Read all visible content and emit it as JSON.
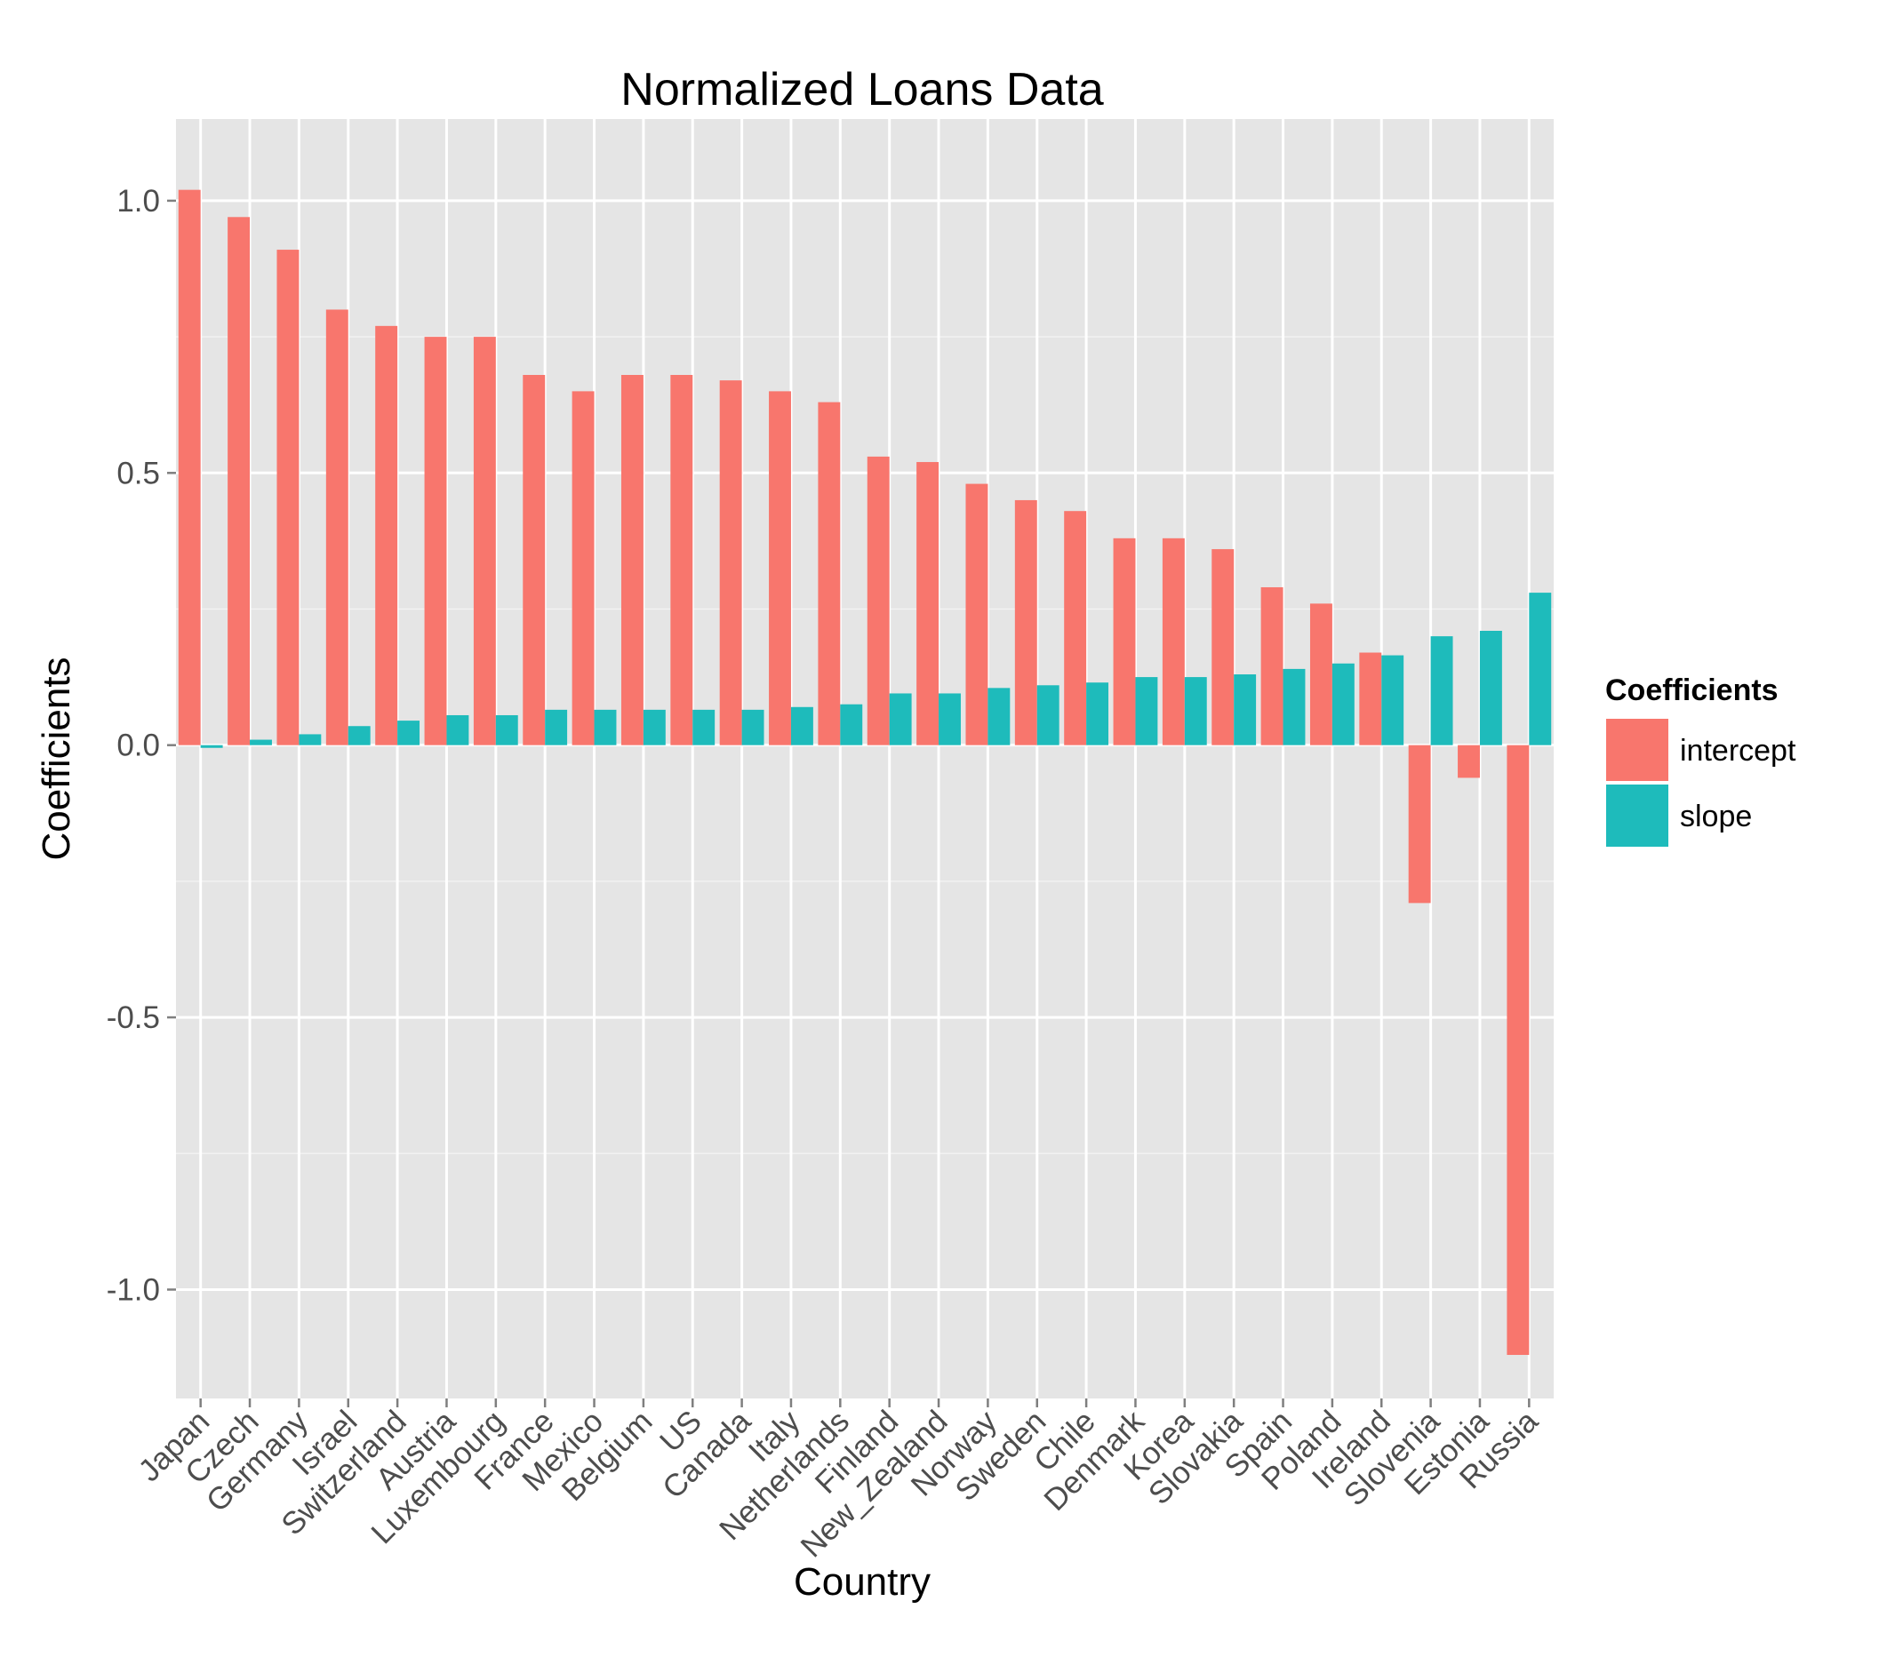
{
  "chart_data": {
    "type": "bar",
    "title": "Normalized Loans Data",
    "xlabel": "Country",
    "ylabel": "Coefficients",
    "ylim": [
      -1.2,
      1.15
    ],
    "yticks": [
      -1.0,
      -0.5,
      0.0,
      0.5,
      1.0
    ],
    "ytick_labels": [
      "-1.0",
      "-0.5",
      "0.0",
      "0.5",
      "1.0"
    ],
    "grid": true,
    "legend_position": "right",
    "legend_title": "Coefficients",
    "categories": [
      "Japan",
      "Czech",
      "Germany",
      "Israel",
      "Switzerland",
      "Austria",
      "Luxembourg",
      "France",
      "Mexico",
      "Belgium",
      "US",
      "Canada",
      "Italy",
      "Netherlands",
      "Finland",
      "New_Zealand",
      "Norway",
      "Sweden",
      "Chile",
      "Denmark",
      "Korea",
      "Slovakia",
      "Spain",
      "Poland",
      "Ireland",
      "Slovenia",
      "Estonia",
      "Russia"
    ],
    "series": [
      {
        "name": "intercept",
        "color": "#f8766d",
        "values": [
          1.02,
          0.97,
          0.91,
          0.8,
          0.77,
          0.75,
          0.75,
          0.68,
          0.65,
          0.68,
          0.68,
          0.67,
          0.65,
          0.63,
          0.53,
          0.52,
          0.48,
          0.45,
          0.43,
          0.38,
          0.38,
          0.36,
          0.29,
          0.26,
          0.17,
          -0.29,
          -0.06,
          -1.12
        ]
      },
      {
        "name": "slope",
        "color": "#1ebbbb",
        "values": [
          -0.005,
          0.01,
          0.02,
          0.035,
          0.045,
          0.055,
          0.055,
          0.065,
          0.065,
          0.065,
          0.065,
          0.065,
          0.07,
          0.075,
          0.095,
          0.095,
          0.105,
          0.11,
          0.115,
          0.125,
          0.125,
          0.13,
          0.14,
          0.15,
          0.165,
          0.2,
          0.21,
          0.28
        ]
      }
    ]
  }
}
